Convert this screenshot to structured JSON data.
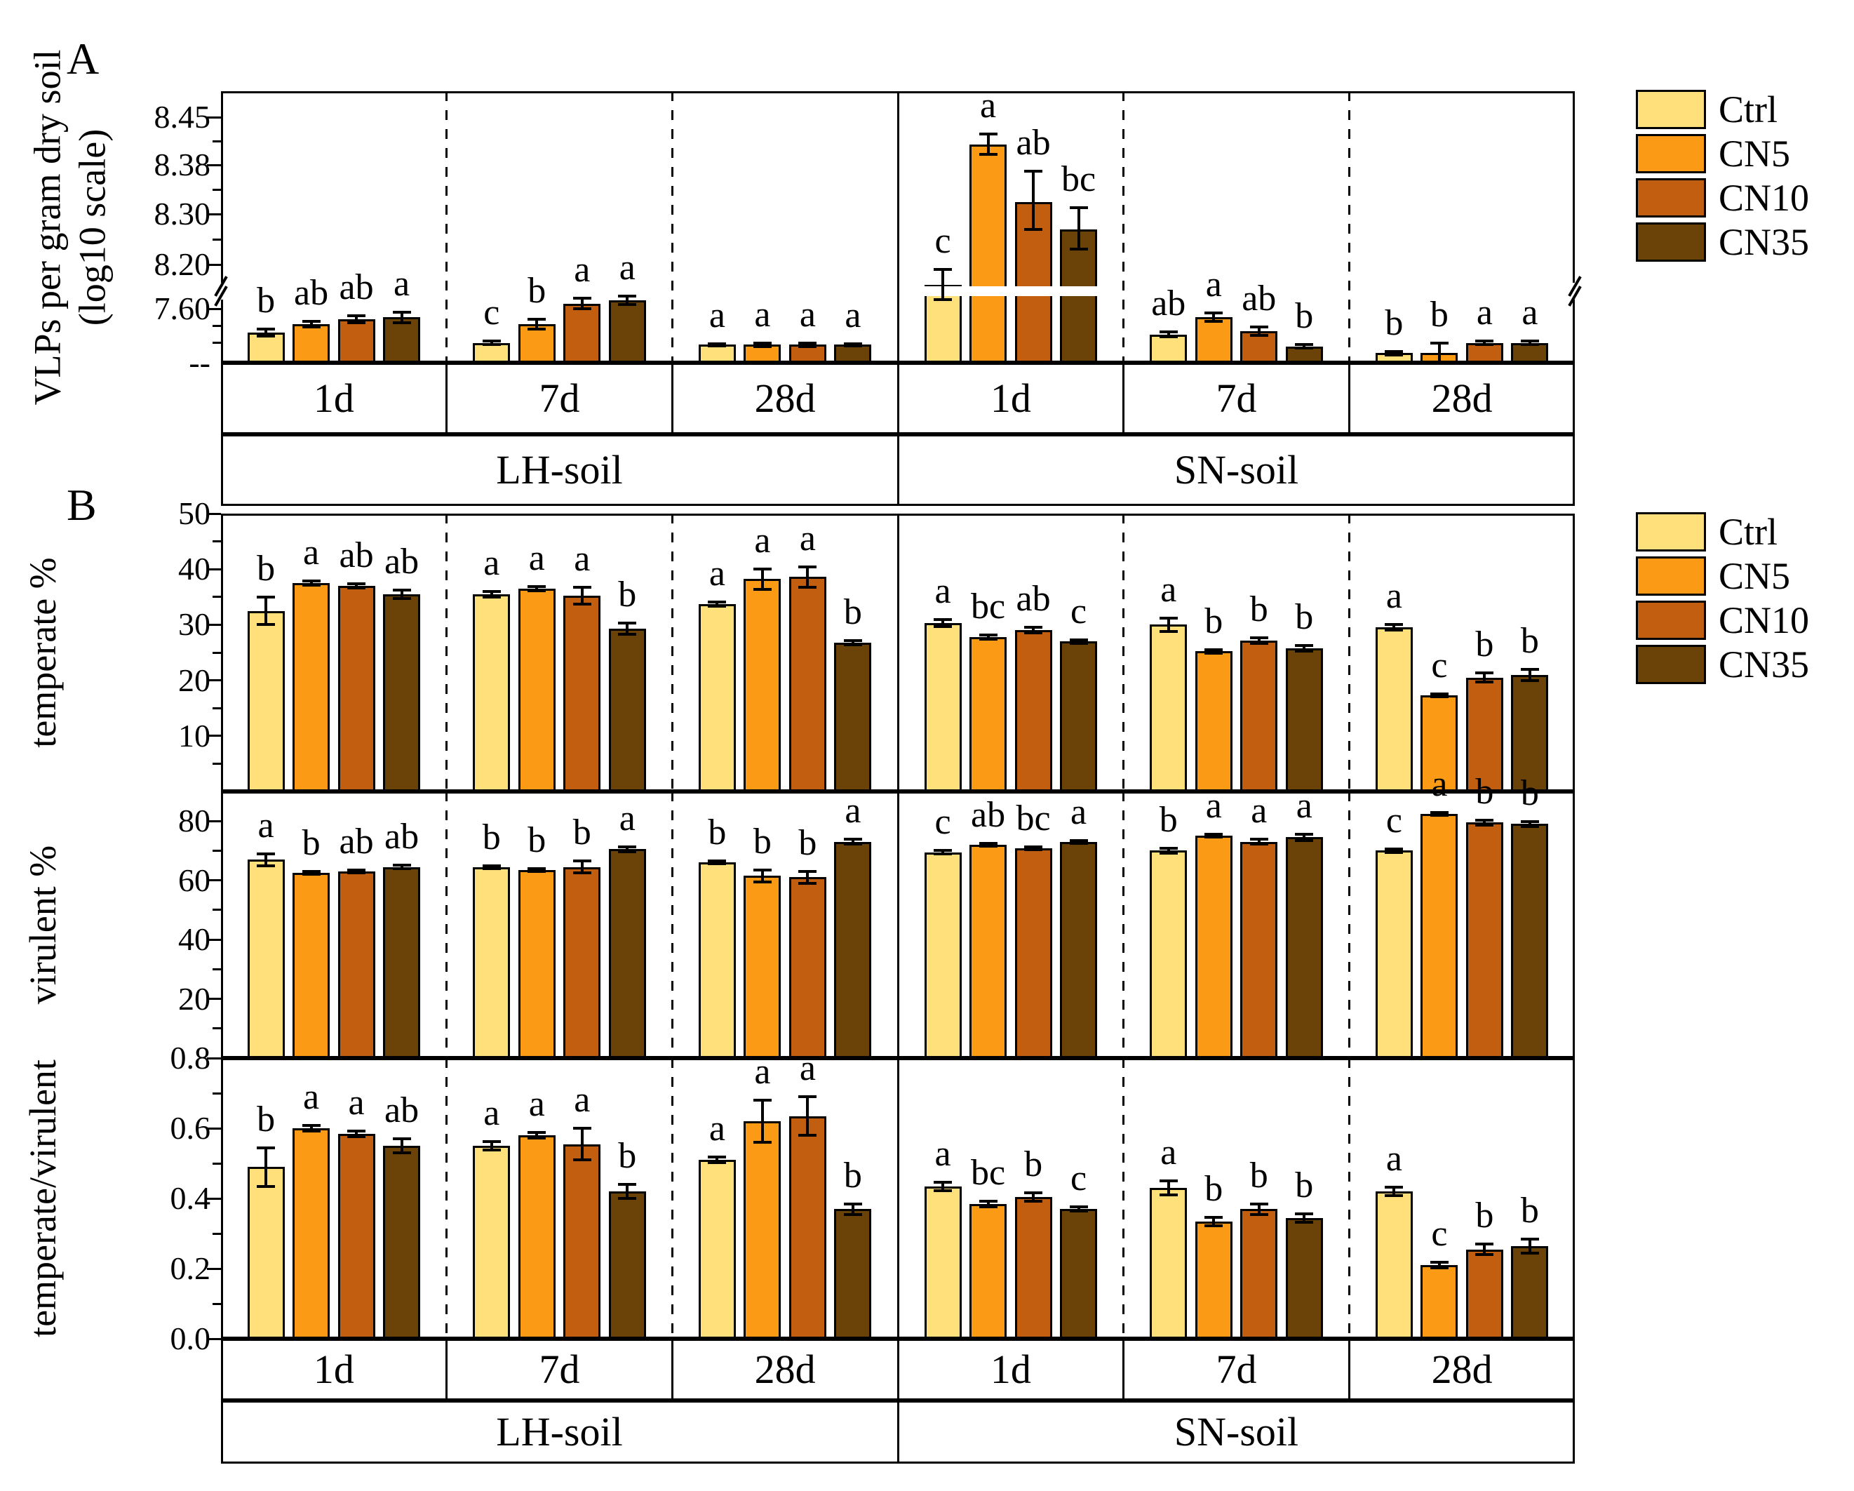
{
  "figure": {
    "panel_a_label": "A",
    "panel_b_label": "B",
    "soils": [
      "LH-soil",
      "SN-soil"
    ],
    "times": [
      "1d",
      "7d",
      "28d"
    ],
    "treatments": [
      "Ctrl",
      "CN5",
      "CN10",
      "CN35"
    ],
    "colors": {
      "Ctrl": "#FFE07A",
      "CN5": "#FB9B15",
      "CN10": "#C25E10",
      "CN35": "#6B4207"
    },
    "legend": {
      "items": [
        "Ctrl",
        "CN5",
        "CN10",
        "CN35"
      ]
    }
  },
  "chart_data": [
    {
      "id": "vlps",
      "type": "bar",
      "panel": "A",
      "ylabel": "VLPs per gram dry soil (log10 scale)",
      "ylabel_lines": [
        "VLPs per gram dry soil",
        "(log10 scale)"
      ],
      "axis": {
        "broken": true,
        "upper_ticks": [
          {
            "v": 8.45,
            "label": "8.45"
          },
          {
            "v": 8.38,
            "label": "8.38"
          },
          {
            "v": 8.3,
            "label": "8.30"
          },
          {
            "v": 8.2,
            "label": "8.20"
          }
        ],
        "upper_minor": [
          8.415,
          8.34,
          8.25
        ],
        "lower_ticks": [
          {
            "v": 7.6,
            "label": "7.60"
          }
        ],
        "lower_minor": [
          7.5,
          7.4
        ],
        "bottom_label": "--"
      },
      "data": {
        "LH-soil": {
          "1d": {
            "values": [
              7.46,
              7.51,
              7.54,
              7.55
            ],
            "errors": [
              0.02,
              0.015,
              0.02,
              0.03
            ],
            "letters": [
              "b",
              "ab",
              "ab",
              "a"
            ]
          },
          "7d": {
            "values": [
              7.4,
              7.51,
              7.63,
              7.65
            ],
            "errors": [
              0.01,
              0.03,
              0.03,
              0.025
            ],
            "letters": [
              "c",
              "b",
              "a",
              "a"
            ]
          },
          "28d": {
            "values": [
              7.39,
              7.39,
              7.39,
              7.39
            ],
            "errors": [
              0.006,
              0.01,
              0.01,
              0.006
            ],
            "letters": [
              "a",
              "a",
              "a",
              "a"
            ]
          }
        },
        "SN-soil": {
          "1d": {
            "values": [
              8.16,
              8.41,
              8.32,
              8.27
            ],
            "errors": [
              0.03,
              0.015,
              0.05,
              0.04
            ],
            "letters": [
              "c",
              "a",
              "ab",
              "bc"
            ]
          },
          "7d": {
            "values": [
              7.45,
              7.55,
              7.47,
              7.38
            ],
            "errors": [
              0.015,
              0.025,
              0.025,
              0.01
            ],
            "letters": [
              "ab",
              "a",
              "ab",
              "b"
            ]
          },
          "28d": {
            "values": [
              7.34,
              7.34,
              7.4,
              7.4
            ],
            "errors": [
              0.01,
              0.06,
              0.01,
              0.01
            ],
            "letters": [
              "b",
              "b",
              "a",
              "a"
            ]
          }
        }
      }
    },
    {
      "id": "temperate",
      "type": "bar",
      "panel": "B",
      "ylabel": "temperate %",
      "ylim": [
        0,
        50
      ],
      "yticks": [
        {
          "v": 10,
          "label": "10"
        },
        {
          "v": 20,
          "label": "20"
        },
        {
          "v": 30,
          "label": "30"
        },
        {
          "v": 40,
          "label": "40"
        },
        {
          "v": 50,
          "label": "50"
        }
      ],
      "minor": [
        5,
        15,
        25,
        35,
        45
      ],
      "data": {
        "LH-soil": {
          "1d": {
            "values": [
              32.5,
              37.5,
              37.0,
              35.5
            ],
            "errors": [
              2.5,
              0.4,
              0.4,
              0.8
            ],
            "letters": [
              "b",
              "a",
              "ab",
              "ab"
            ]
          },
          "7d": {
            "values": [
              35.5,
              36.5,
              35.2,
              29.3
            ],
            "errors": [
              0.5,
              0.4,
              1.5,
              1.0
            ],
            "letters": [
              "a",
              "a",
              "a",
              "b"
            ]
          },
          "28d": {
            "values": [
              33.7,
              38.2,
              38.6,
              26.8
            ],
            "errors": [
              0.4,
              1.8,
              1.8,
              0.4
            ],
            "letters": [
              "a",
              "a",
              "a",
              "b"
            ]
          }
        },
        "SN-soil": {
          "1d": {
            "values": [
              30.3,
              27.8,
              29.0,
              27.0
            ],
            "errors": [
              0.6,
              0.4,
              0.5,
              0.3
            ],
            "letters": [
              "a",
              "bc",
              "ab",
              "c"
            ]
          },
          "7d": {
            "values": [
              30.0,
              25.2,
              27.1,
              25.7
            ],
            "errors": [
              1.2,
              0.3,
              0.5,
              0.5
            ],
            "letters": [
              "a",
              "b",
              "b",
              "b"
            ]
          },
          "28d": {
            "values": [
              29.5,
              17.3,
              20.5,
              21.0
            ],
            "errors": [
              0.5,
              0.3,
              0.8,
              1.0
            ],
            "letters": [
              "a",
              "c",
              "b",
              "b"
            ]
          }
        }
      }
    },
    {
      "id": "virulent",
      "type": "bar",
      "panel": "B",
      "ylabel": "virulent %",
      "ylim": [
        0,
        90
      ],
      "yticks": [
        {
          "v": 20,
          "label": "20"
        },
        {
          "v": 40,
          "label": "40"
        },
        {
          "v": 60,
          "label": "60"
        },
        {
          "v": 80,
          "label": "80"
        }
      ],
      "minor": [
        10,
        30,
        50,
        70
      ],
      "data": {
        "LH-soil": {
          "1d": {
            "values": [
              67.0,
              62.5,
              63.0,
              64.5
            ],
            "errors": [
              2.0,
              0.5,
              0.5,
              0.6
            ],
            "letters": [
              "a",
              "b",
              "ab",
              "ab"
            ]
          },
          "7d": {
            "values": [
              64.5,
              63.5,
              64.5,
              70.5
            ],
            "errors": [
              0.5,
              0.4,
              2.0,
              0.8
            ],
            "letters": [
              "b",
              "b",
              "b",
              "a"
            ]
          },
          "28d": {
            "values": [
              66.0,
              61.5,
              61.0,
              73.0
            ],
            "errors": [
              0.5,
              2.0,
              2.0,
              0.8
            ],
            "letters": [
              "b",
              "b",
              "b",
              "a"
            ]
          }
        },
        "SN-soil": {
          "1d": {
            "values": [
              69.5,
              72.0,
              70.8,
              73.0
            ],
            "errors": [
              0.5,
              0.5,
              0.5,
              0.5
            ],
            "letters": [
              "c",
              "ab",
              "bc",
              "a"
            ]
          },
          "7d": {
            "values": [
              70.0,
              75.0,
              73.0,
              74.5
            ],
            "errors": [
              0.8,
              0.5,
              0.8,
              1.0
            ],
            "letters": [
              "b",
              "a",
              "a",
              "a"
            ]
          },
          "28d": {
            "values": [
              70.0,
              82.5,
              79.5,
              79.0
            ],
            "errors": [
              0.5,
              0.5,
              0.8,
              0.8
            ],
            "letters": [
              "c",
              "a",
              "b",
              "b"
            ]
          }
        }
      }
    },
    {
      "id": "ratio",
      "type": "bar",
      "panel": "B",
      "ylabel": "temperate/virulent",
      "ylim": [
        0,
        0.8
      ],
      "yticks": [
        {
          "v": 0.0,
          "label": "0.0"
        },
        {
          "v": 0.2,
          "label": "0.2"
        },
        {
          "v": 0.4,
          "label": "0.4"
        },
        {
          "v": 0.6,
          "label": "0.6"
        },
        {
          "v": 0.8,
          "label": "0.8"
        }
      ],
      "minor": [
        0.1,
        0.3,
        0.5,
        0.7
      ],
      "data": {
        "LH-soil": {
          "1d": {
            "values": [
              0.49,
              0.6,
              0.585,
              0.55
            ],
            "errors": [
              0.055,
              0.008,
              0.008,
              0.02
            ],
            "letters": [
              "b",
              "a",
              "a",
              "ab"
            ]
          },
          "7d": {
            "values": [
              0.55,
              0.58,
              0.555,
              0.42
            ],
            "errors": [
              0.012,
              0.008,
              0.045,
              0.02
            ],
            "letters": [
              "a",
              "a",
              "a",
              "b"
            ]
          },
          "28d": {
            "values": [
              0.51,
              0.62,
              0.635,
              0.37
            ],
            "errors": [
              0.008,
              0.06,
              0.055,
              0.015
            ],
            "letters": [
              "a",
              "a",
              "a",
              "b"
            ]
          }
        },
        "SN-soil": {
          "1d": {
            "values": [
              0.435,
              0.385,
              0.405,
              0.37
            ],
            "errors": [
              0.012,
              0.008,
              0.012,
              0.006
            ],
            "letters": [
              "a",
              "bc",
              "b",
              "c"
            ]
          },
          "7d": {
            "values": [
              0.43,
              0.335,
              0.37,
              0.345
            ],
            "errors": [
              0.02,
              0.012,
              0.015,
              0.012
            ],
            "letters": [
              "a",
              "b",
              "b",
              "b"
            ]
          },
          "28d": {
            "values": [
              0.42,
              0.21,
              0.255,
              0.265
            ],
            "errors": [
              0.012,
              0.008,
              0.015,
              0.02
            ],
            "letters": [
              "a",
              "c",
              "b",
              "b"
            ]
          }
        }
      }
    }
  ]
}
